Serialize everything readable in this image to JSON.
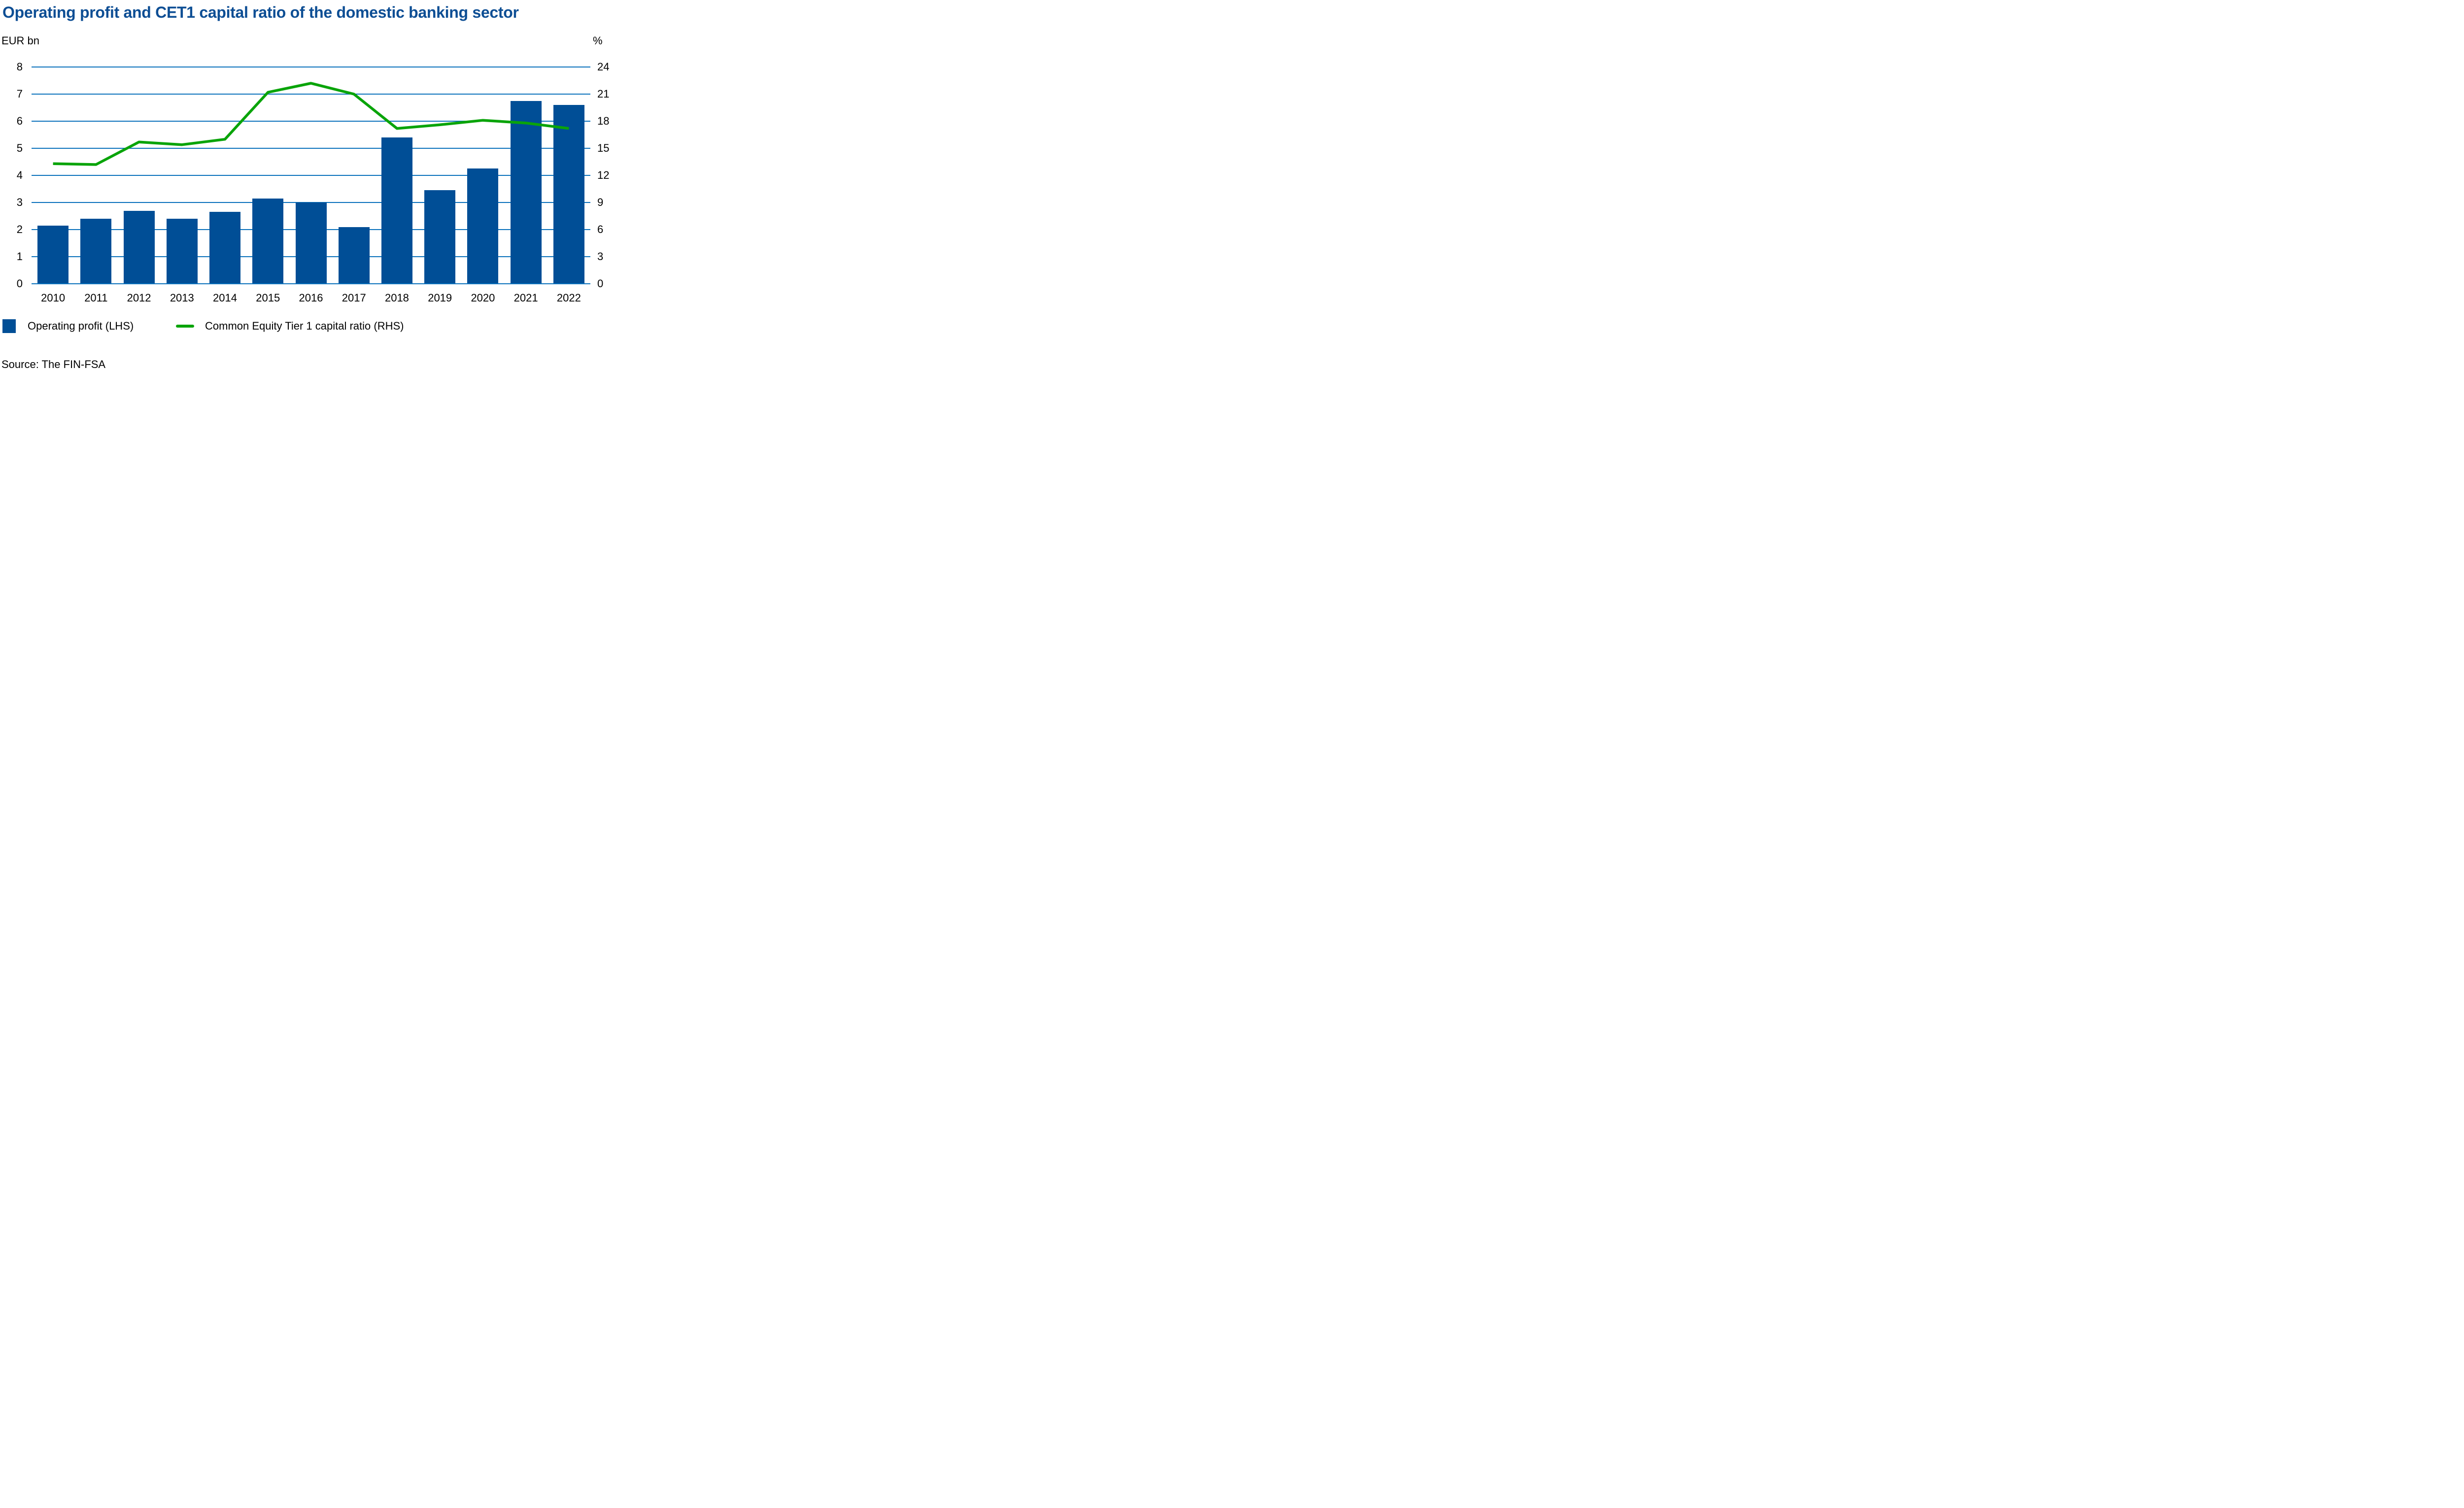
{
  "title": "Operating profit and CET1 capital ratio of the domestic banking sector",
  "left_axis_unit": "EUR bn",
  "right_axis_unit": "%",
  "source": "Source: The FIN-FSA",
  "legend": {
    "bars": "Operating profit (LHS)",
    "line": "Common Equity Tier 1 capital ratio (RHS)"
  },
  "colors": {
    "bar": "#004E96",
    "line": "#0AA40A",
    "grid": "#0C72BC",
    "title": "#0D4E94",
    "text": "#000000"
  },
  "chart_data": {
    "type": "bar",
    "subtype": "bar+line dual axis",
    "categories": [
      "2010",
      "2011",
      "2012",
      "2013",
      "2014",
      "2015",
      "2016",
      "2017",
      "2018",
      "2019",
      "2020",
      "2021",
      "2022"
    ],
    "series": [
      {
        "name": "Operating profit (LHS)",
        "type": "bar",
        "axis": "left",
        "unit": "EUR bn",
        "values": [
          2.15,
          2.4,
          2.7,
          2.4,
          2.65,
          3.15,
          3.0,
          2.1,
          5.4,
          3.45,
          4.25,
          6.75,
          6.6
        ]
      },
      {
        "name": "Common Equity Tier 1 capital ratio (RHS)",
        "type": "line",
        "axis": "right",
        "unit": "%",
        "values": [
          13.3,
          13.2,
          15.7,
          15.4,
          16.0,
          21.2,
          22.2,
          21.0,
          17.2,
          17.6,
          18.1,
          17.8,
          17.2
        ]
      }
    ],
    "left_axis": {
      "label": "EUR bn",
      "min": 0,
      "max": 8,
      "ticks": [
        8,
        7,
        6,
        5,
        4,
        3,
        2,
        1,
        0
      ]
    },
    "right_axis": {
      "label": "%",
      "min": 0,
      "max": 24,
      "ticks": [
        24,
        21,
        18,
        15,
        12,
        9,
        6,
        3,
        0
      ]
    },
    "grid": true,
    "legend_position": "bottom-left",
    "title": "Operating profit and CET1 capital ratio of the domestic banking sector"
  }
}
